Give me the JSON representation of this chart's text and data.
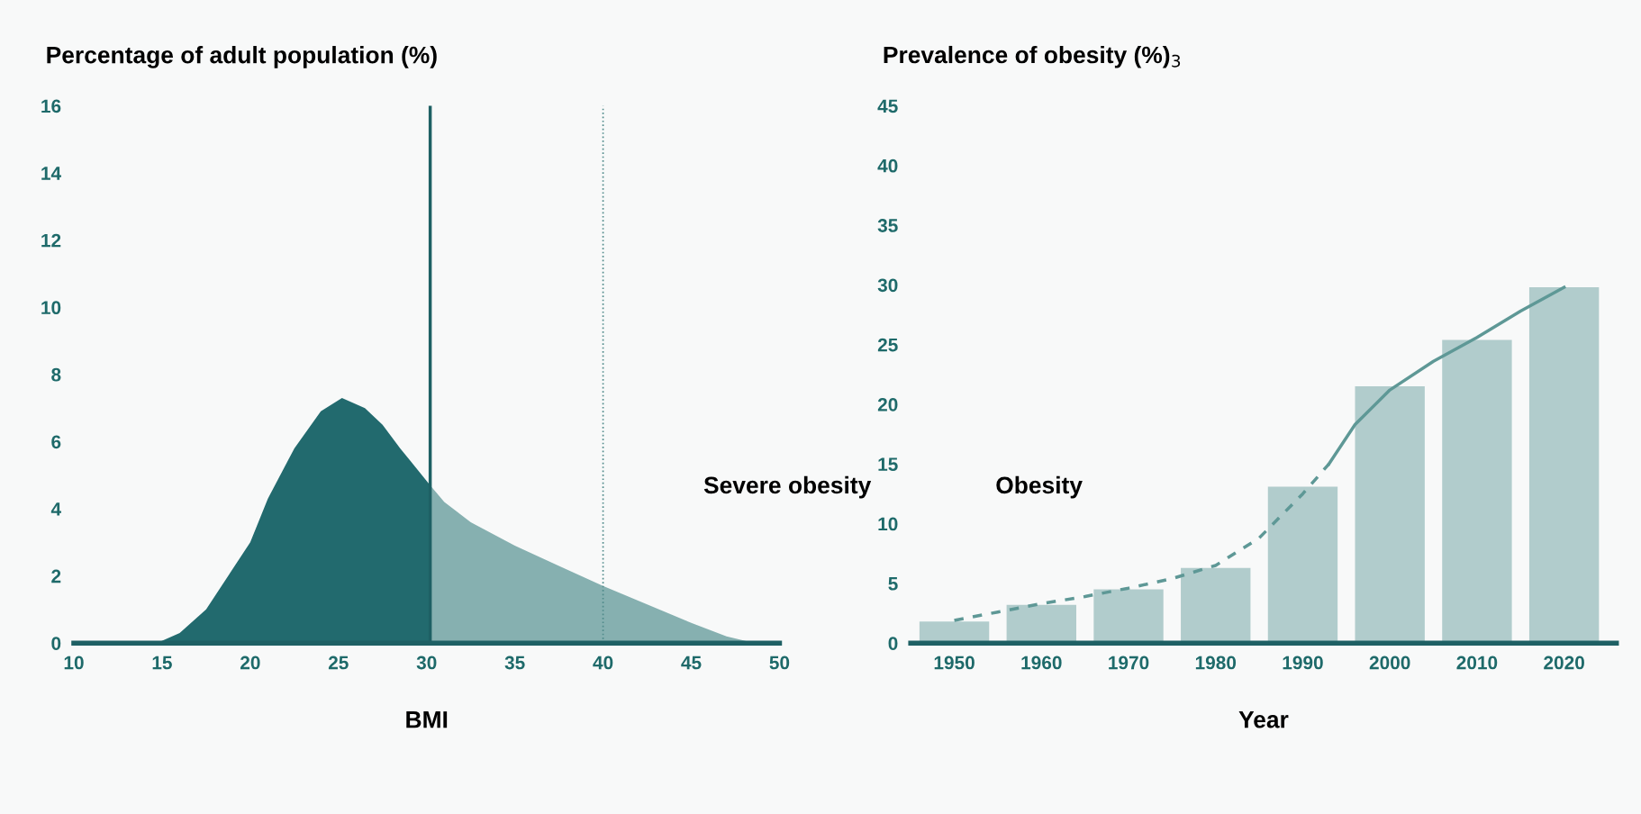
{
  "chart_data": [
    {
      "type": "area",
      "ylabel": "Percentage of adult population (%)",
      "xlabel": "BMI",
      "series": [
        {
          "color": "#226a6e",
          "x": [
            10,
            14.7,
            16,
            17.5,
            19,
            20,
            21,
            22.5,
            24,
            25.2,
            26.5,
            27.5,
            28.5,
            30.2
          ],
          "values": [
            0,
            0,
            0.3,
            1.0,
            2.2,
            3.0,
            4.3,
            5.8,
            6.9,
            7.3,
            7.0,
            6.5,
            5.8,
            4.7
          ]
        },
        {
          "color": "#86b0b0",
          "x": [
            30.2,
            31,
            32.5,
            35,
            37.5,
            40,
            42.5,
            45,
            47,
            48.6,
            50
          ],
          "values": [
            4.7,
            4.2,
            3.6,
            2.9,
            2.3,
            1.7,
            1.15,
            0.6,
            0.2,
            0,
            0
          ]
        }
      ],
      "xlim": [
        10,
        50
      ],
      "xticks": [
        10,
        15,
        20,
        25,
        30,
        35,
        40,
        45,
        50
      ],
      "ylim": [
        0,
        16
      ],
      "yticks": [
        0,
        2,
        4,
        6,
        8,
        10,
        12,
        14,
        16
      ],
      "ref_lines": [
        {
          "axis": "x",
          "value": 30.2,
          "color": "#1e6064",
          "line_style": "solid"
        },
        {
          "axis": "x",
          "value": 40,
          "color": "#4f8a8a",
          "line_style": "dotted"
        }
      ],
      "annotations": [
        "Severe obesity"
      ],
      "grid": false,
      "legend": false
    },
    {
      "type": "bar",
      "ylabel": "Prevalence of obesity (%)$_{3}$",
      "xlabel": "Year",
      "x": [
        1950,
        1960,
        1970,
        1980,
        1990,
        2000,
        2010,
        2020
      ],
      "series": [
        {
          "color": "#b1cccc",
          "values": [
            1.8,
            3.2,
            4.5,
            6.3,
            13.1,
            21.5,
            25.4,
            29.8
          ]
        },
        {
          "type": "line",
          "line_style": "dashed",
          "color": "#5e9896",
          "x": [
            1950,
            1955,
            1960,
            1965,
            1970,
            1975,
            1980,
            1985,
            1990,
            1993
          ],
          "values": [
            1.9,
            2.6,
            3.3,
            3.9,
            4.6,
            5.4,
            6.5,
            8.8,
            12.5,
            15
          ]
        },
        {
          "type": "line",
          "line_style": "solid",
          "color": "#5e9896",
          "x": [
            1993,
            1996,
            2000,
            2005,
            2010,
            2015,
            2020
          ],
          "values": [
            15,
            18.3,
            21.2,
            23.6,
            25.6,
            27.8,
            29.8
          ]
        }
      ],
      "xlim": [
        1945,
        2026
      ],
      "xticks": [
        1950,
        1960,
        1970,
        1980,
        1990,
        2000,
        2010,
        2020
      ],
      "ylim": [
        0,
        45
      ],
      "yticks": [
        0,
        5,
        10,
        15,
        20,
        25,
        30,
        35,
        40,
        45
      ],
      "annotations": [
        "Obesity"
      ],
      "grid": false,
      "legend": false
    }
  ]
}
